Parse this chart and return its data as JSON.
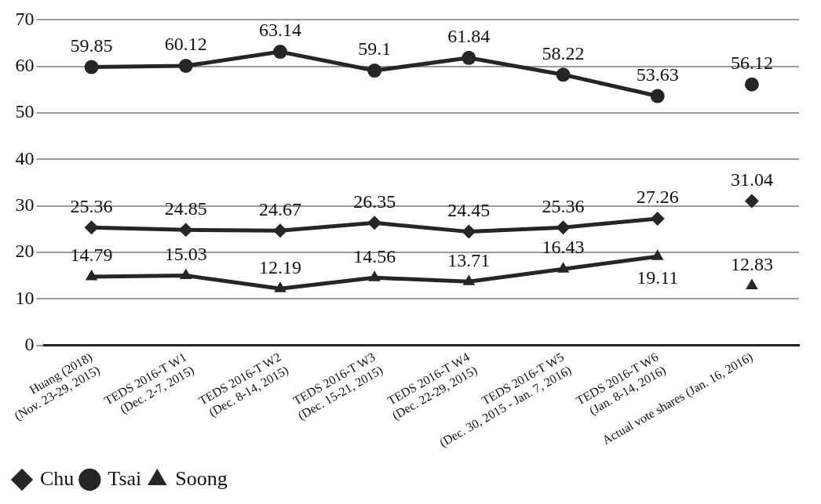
{
  "chart_data": {
    "type": "line",
    "categories": [
      "Huang (2018)\n(Nov. 23-29, 2015)",
      "TEDS 2016-T W1\n(Dec. 2-7, 2015)",
      "TEDS 2016-T W2\n(Dec. 8-14, 2015)",
      "TEDS 2016-T W3\n(Dec. 15-21, 2015)",
      "TEDS 2016-T W4\n(Dec. 22-29, 2015)",
      "TEDS 2016-T W5\n(Dec. 30, 2015 - Jan. 7, 2016)",
      "TEDS 2016-T W6\n(Jan. 8-14, 2016)",
      "Actual vote shares (Jan. 16, 2016)"
    ],
    "series": [
      {
        "name": "Chu",
        "color": "#262626",
        "marker": "diamond",
        "values": [
          25.36,
          24.85,
          24.67,
          26.35,
          24.45,
          25.36,
          27.26,
          null
        ]
      },
      {
        "name": "Tsai",
        "color": "#262626",
        "marker": "circle",
        "values": [
          59.85,
          60.12,
          63.14,
          59.1,
          61.84,
          58.22,
          53.63,
          null
        ]
      },
      {
        "name": "Soong",
        "color": "#262626",
        "marker": "triangle",
        "values": [
          14.79,
          15.03,
          12.19,
          14.56,
          13.71,
          16.43,
          19.11,
          null
        ]
      },
      {
        "type": "scatter",
        "color": "#262626",
        "marker": "diamond",
        "x": [
          "Actual vote shares (Jan. 16, 2016)"
        ],
        "values": [
          31.04
        ]
      },
      {
        "type": "scatter",
        "color": "#262626",
        "marker": "circle",
        "x": [
          "Actual vote shares (Jan. 16, 2016)"
        ],
        "values": [
          56.12
        ]
      },
      {
        "type": "scatter",
        "color": "#262626",
        "marker": "triangle",
        "x": [
          "Actual vote shares (Jan. 16, 2016)"
        ],
        "values": [
          12.83
        ]
      }
    ],
    "ylim": [
      0,
      70
    ],
    "yticks": [
      0,
      10,
      20,
      30,
      40,
      50,
      60,
      70
    ],
    "grid": "y",
    "legend": "bottom left",
    "data_labels": true,
    "line_style": "solid"
  }
}
